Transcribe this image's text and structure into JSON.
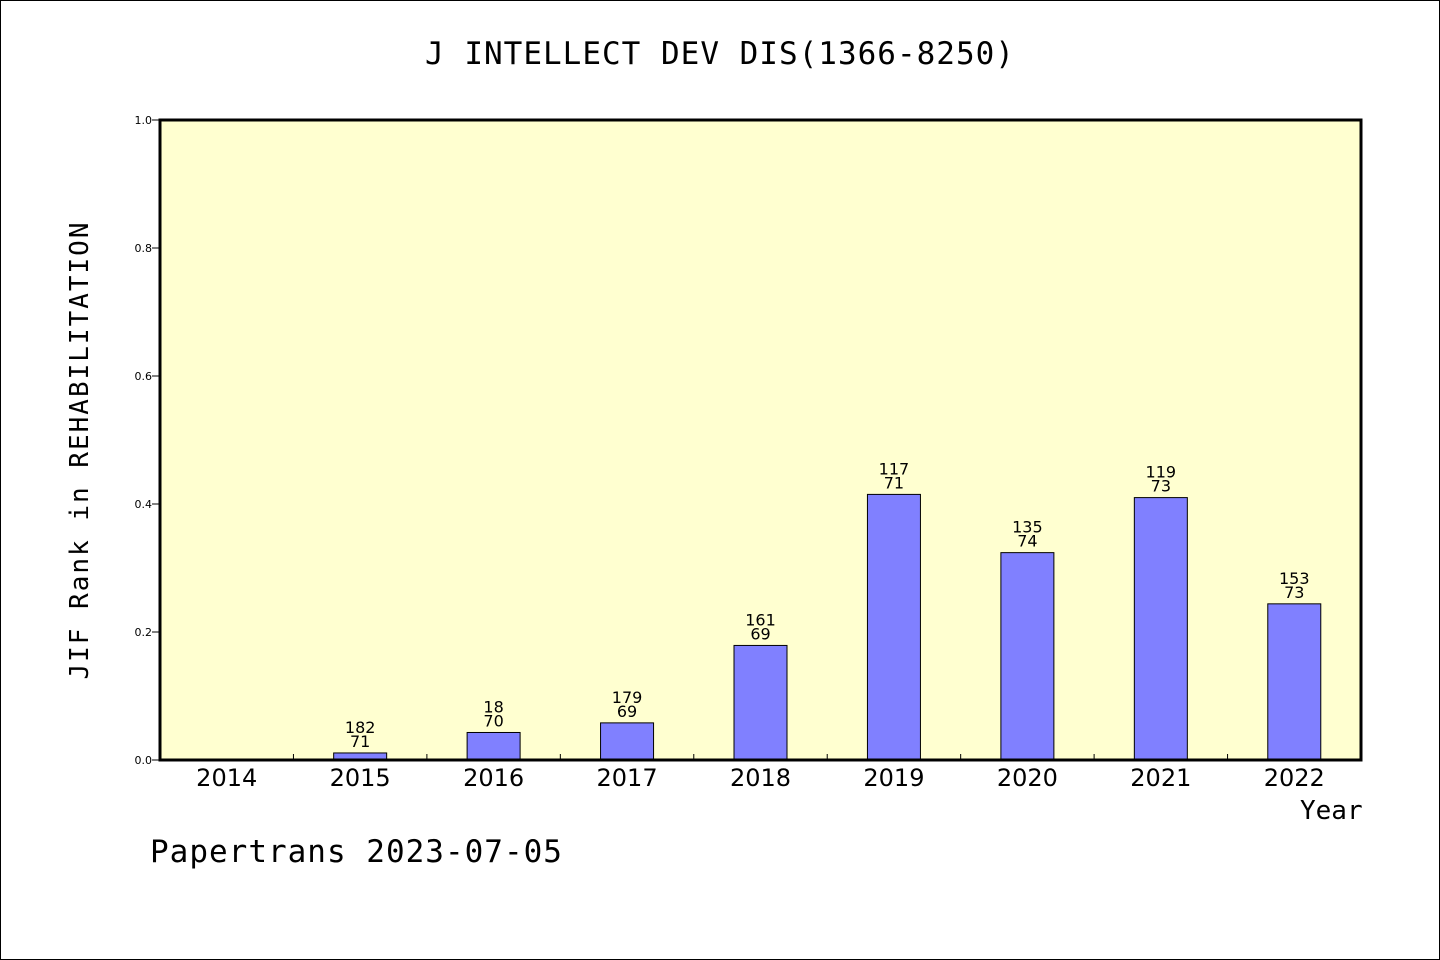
{
  "chart_data": {
    "type": "bar",
    "title": "J INTELLECT DEV DIS(1366-8250)",
    "ylabel": "JIF Rank in REHABILITATION",
    "xlabel": "Year",
    "ylim": [
      0,
      1.0
    ],
    "yticks": [
      "0.0",
      "0.2",
      "0.4",
      "0.6",
      "0.8",
      "1.0"
    ],
    "categories": [
      "2014",
      "2015",
      "2016",
      "2017",
      "2018",
      "2019",
      "2020",
      "2021",
      "2022"
    ],
    "values": [
      0,
      0.011,
      0.043,
      0.058,
      0.179,
      0.415,
      0.324,
      0.41,
      0.244
    ],
    "bar_labels": [
      null,
      [
        "182",
        "71"
      ],
      [
        "18",
        "70"
      ],
      [
        "179",
        "69"
      ],
      [
        "161",
        "69"
      ],
      [
        "117",
        "71"
      ],
      [
        "135",
        "74"
      ],
      [
        "119",
        "73"
      ],
      [
        "153",
        "73"
      ]
    ],
    "grid": false,
    "colors": {
      "plot_background": "#ffffd0",
      "bar_fill": "#8080ff",
      "bar_stroke": "#000000"
    }
  },
  "footer": {
    "text": "Papertrans 2023-07-05"
  }
}
